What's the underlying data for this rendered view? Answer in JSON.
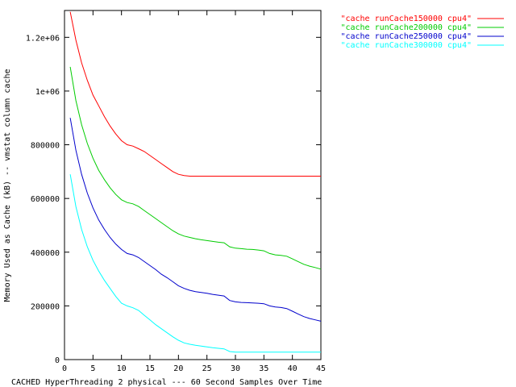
{
  "chart_data": {
    "type": "line",
    "title": "",
    "xlabel": "CACHED HyperThreading 2 physical --- 60 Second Samples Over Time",
    "ylabel": "Memory Used as Cache (kB) -- vmstat column cache",
    "xlim": [
      0,
      45
    ],
    "ylim": [
      0,
      1300000
    ],
    "xticks": [
      0,
      5,
      10,
      15,
      20,
      25,
      30,
      35,
      40,
      45
    ],
    "xtick_labels": [
      "0",
      "5",
      "10",
      "15",
      "20",
      "25",
      "30",
      "35",
      "40",
      "45"
    ],
    "yticks": [
      0,
      200000,
      400000,
      600000,
      800000,
      1000000,
      1200000
    ],
    "ytick_labels": [
      "0",
      "200000",
      "400000",
      "600000",
      "800000",
      "1e+06",
      "1.2e+06"
    ],
    "grid": false,
    "legend_position": "top-right (outside plot)",
    "series": [
      {
        "name": "\"cache runCache150000 cpu4\"",
        "color": "#ff0000",
        "x": [
          1,
          2,
          3,
          4,
          5,
          6,
          7,
          8,
          9,
          10,
          11,
          12,
          13,
          14,
          15,
          16,
          17,
          18,
          19,
          20,
          21,
          22,
          23,
          24,
          25,
          26,
          27,
          28,
          29,
          30,
          31,
          32,
          33,
          34,
          35,
          36,
          37,
          38,
          39,
          40,
          41,
          42,
          43,
          44,
          45
        ],
        "y": [
          1295000,
          1190000,
          1105000,
          1040000,
          985000,
          945000,
          905000,
          870000,
          840000,
          815000,
          800000,
          795000,
          785000,
          775000,
          760000,
          745000,
          730000,
          715000,
          700000,
          690000,
          685000,
          683000,
          683000,
          683000,
          683000,
          683000,
          683000,
          683000,
          683000,
          683000,
          683000,
          683000,
          683000,
          683000,
          683000,
          683000,
          683000,
          683000,
          683000,
          683000,
          683000,
          683000,
          683000,
          683000,
          683000
        ]
      },
      {
        "name": "\"cache runCache200000 cpu4\"",
        "color": "#00cc00",
        "x": [
          1,
          2,
          3,
          4,
          5,
          6,
          7,
          8,
          9,
          10,
          11,
          12,
          13,
          14,
          15,
          16,
          17,
          18,
          19,
          20,
          21,
          22,
          23,
          24,
          25,
          26,
          27,
          28,
          29,
          30,
          31,
          32,
          33,
          34,
          35,
          36,
          37,
          38,
          39,
          40,
          41,
          42,
          43,
          44,
          45
        ],
        "y": [
          1090000,
          965000,
          875000,
          805000,
          750000,
          705000,
          670000,
          640000,
          615000,
          595000,
          585000,
          580000,
          570000,
          555000,
          540000,
          525000,
          510000,
          495000,
          480000,
          468000,
          460000,
          455000,
          450000,
          446000,
          443000,
          440000,
          437000,
          435000,
          420000,
          415000,
          413000,
          411000,
          410000,
          408000,
          405000,
          395000,
          390000,
          388000,
          385000,
          375000,
          365000,
          355000,
          348000,
          343000,
          337000
        ]
      },
      {
        "name": "\"cache runCache250000 cpu4\"",
        "color": "#0000cc",
        "x": [
          1,
          2,
          3,
          4,
          5,
          6,
          7,
          8,
          9,
          10,
          11,
          12,
          13,
          14,
          15,
          16,
          17,
          18,
          19,
          20,
          21,
          22,
          23,
          24,
          25,
          26,
          27,
          28,
          29,
          30,
          31,
          32,
          33,
          34,
          35,
          36,
          37,
          38,
          39,
          40,
          41,
          42,
          43,
          44,
          45
        ],
        "y": [
          900000,
          780000,
          690000,
          620000,
          565000,
          520000,
          485000,
          455000,
          430000,
          410000,
          395000,
          390000,
          380000,
          365000,
          350000,
          335000,
          318000,
          305000,
          290000,
          275000,
          265000,
          258000,
          253000,
          250000,
          247000,
          243000,
          240000,
          237000,
          220000,
          215000,
          213000,
          212000,
          211000,
          210000,
          208000,
          200000,
          196000,
          194000,
          190000,
          180000,
          170000,
          160000,
          153000,
          148000,
          143000
        ]
      },
      {
        "name": "\"cache runCache300000 cpu4\"",
        "color": "#00ffff",
        "x": [
          1,
          2,
          3,
          4,
          5,
          6,
          7,
          8,
          9,
          10,
          11,
          12,
          13,
          14,
          15,
          16,
          17,
          18,
          19,
          20,
          21,
          22,
          23,
          24,
          25,
          26,
          27,
          28,
          29,
          30,
          31,
          32,
          33,
          34,
          35,
          36,
          37,
          38,
          39,
          40,
          41,
          42,
          43,
          44,
          45
        ],
        "y": [
          690000,
          570000,
          485000,
          420000,
          370000,
          330000,
          295000,
          265000,
          235000,
          210000,
          200000,
          193000,
          183000,
          165000,
          148000,
          130000,
          115000,
          100000,
          85000,
          72000,
          62000,
          57000,
          53000,
          50000,
          47000,
          44000,
          42000,
          40000,
          30000,
          28000,
          28000,
          28000,
          28000,
          28000,
          28000,
          28000,
          28000,
          28000,
          28000,
          28000,
          28000,
          28000,
          28000,
          28000,
          28000
        ]
      }
    ]
  }
}
